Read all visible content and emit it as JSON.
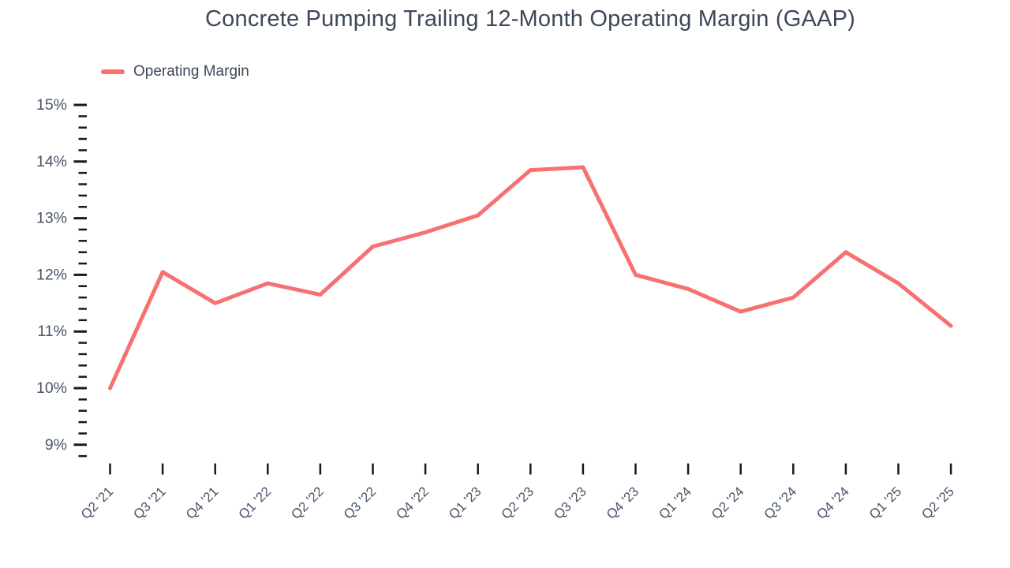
{
  "title": "Concrete Pumping Trailing 12-Month Operating Margin (GAAP)",
  "legend": {
    "label": "Operating Margin"
  },
  "chart_data": {
    "type": "line",
    "title": "Concrete Pumping Trailing 12-Month Operating Margin (GAAP)",
    "categories": [
      "Q2 '21",
      "Q3 '21",
      "Q4 '21",
      "Q1 '22",
      "Q2 '22",
      "Q3 '22",
      "Q4 '22",
      "Q1 '23",
      "Q2 '23",
      "Q3 '23",
      "Q4 '23",
      "Q1 '24",
      "Q2 '24",
      "Q3 '24",
      "Q4 '24",
      "Q1 '25",
      "Q2 '25"
    ],
    "series": [
      {
        "name": "Operating Margin",
        "values": [
          10.0,
          12.05,
          11.5,
          11.85,
          11.65,
          12.5,
          12.75,
          13.05,
          13.85,
          13.9,
          12.0,
          11.75,
          11.35,
          11.6,
          12.4,
          11.85,
          11.1
        ]
      }
    ],
    "unit": "%",
    "xlabel": "",
    "ylabel": "",
    "y_axis": {
      "tick_labels": [
        "15%",
        "14%",
        "13%",
        "12%",
        "11%",
        "10%",
        "9%"
      ],
      "tick_values": [
        15,
        14,
        13,
        12,
        11,
        10,
        9
      ],
      "minor_tick_step": 0.2,
      "min": 8.8,
      "max": 15
    },
    "grid": false,
    "legend_position": "top-left",
    "colors": {
      "line": "#F87171",
      "title_text": "#3D4859",
      "axis_label_text": "#4A5568",
      "tick_mark": "#16181D"
    }
  }
}
